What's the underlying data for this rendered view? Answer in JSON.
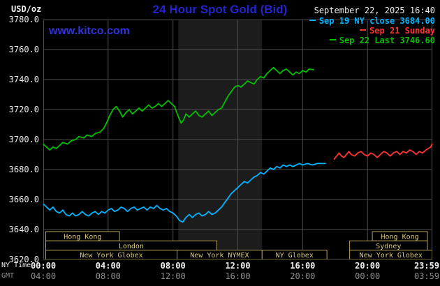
{
  "header": {
    "units_label": "USD/oz",
    "title": "24 Hour Spot Gold (Bid)",
    "datetime": "September 22, 2025 16:40"
  },
  "watermark": {
    "text": "www.kitco.com"
  },
  "colors": {
    "background": "#000000",
    "grid": "#4e4e4e",
    "band": "#1c1c1c",
    "title_blue": "#2323cf",
    "watermark_blue": "#3232dc",
    "axis_text": "#ededed",
    "gmt_text": "#8f8f8f",
    "session_border": "#b3a356",
    "session_text": "#d9c97c",
    "cyan": "#00b4ff",
    "red": "#ff3333",
    "green": "#00c000"
  },
  "legend": {
    "items": [
      {
        "label": "Sep 19 NY close 3684.00",
        "color": "#00b4ff"
      },
      {
        "label": "Sep 21 Sunday",
        "color": "#ff3333"
      },
      {
        "label": "Sep 22 Last 3746.60",
        "color": "#00c000"
      }
    ]
  },
  "axes": {
    "ny_time_label": "NY Time",
    "gmt_label": "GMT",
    "y_tick_labels": [
      "3780.0",
      "3760.0",
      "3740.0",
      "3720.0",
      "3700.0",
      "3680.0",
      "3660.0",
      "3640.0",
      "3620.0"
    ],
    "x_ticks": [
      {
        "hour": 0,
        "ny": "00:00",
        "gmt": "04:00"
      },
      {
        "hour": 4,
        "ny": "04:00",
        "gmt": "08:00"
      },
      {
        "hour": 8,
        "ny": "08:00",
        "gmt": "12:00"
      },
      {
        "hour": 12,
        "ny": "12:00",
        "gmt": "16:00"
      },
      {
        "hour": 16,
        "ny": "16:00",
        "gmt": "20:00"
      },
      {
        "hour": 20,
        "ny": "20:00",
        "gmt": "00:00"
      },
      {
        "hour": 24,
        "ny": "23:59",
        "gmt": "03:59"
      }
    ]
  },
  "sessions": [
    {
      "row": 0,
      "start": 0.15,
      "end": 4.7,
      "label": "Hong Kong"
    },
    {
      "row": 0,
      "start": 20.3,
      "end": 23.7,
      "label": "Hong Kong"
    },
    {
      "row": 1,
      "start": 0.15,
      "end": 10.7,
      "label": "London"
    },
    {
      "row": 1,
      "start": 18.9,
      "end": 23.7,
      "label": "Sydney"
    },
    {
      "row": 2,
      "start": 0.15,
      "end": 8.25,
      "label": "New York Globex"
    },
    {
      "row": 2,
      "start": 8.25,
      "end": 13.5,
      "label": "New York NYMEX"
    },
    {
      "row": 2,
      "start": 13.5,
      "end": 17.5,
      "label": "NY Globex"
    },
    {
      "row": 2,
      "start": 18.9,
      "end": 24.0,
      "label": "New York Globex"
    }
  ],
  "chart_data": {
    "type": "line",
    "title": "24 Hour Spot Gold (Bid)",
    "ylabel": "USD/oz",
    "xlabel": "Time (NY hours)",
    "ylim": [
      3620,
      3780
    ],
    "xlim": [
      0,
      24
    ],
    "y_grid_step": 20,
    "x_grid_step": 4,
    "grid": true,
    "legend_position": "top-right",
    "shaded_band_hours": [
      8.33,
      13.5
    ],
    "series": [
      {
        "id": "sep19-ny-close",
        "name": "Sep 19 NY close 3684.00",
        "color": "#00b4ff",
        "last_value": 3684.0,
        "points": [
          [
            0,
            3657
          ],
          [
            0.2,
            3655
          ],
          [
            0.4,
            3653
          ],
          [
            0.6,
            3655
          ],
          [
            0.8,
            3652
          ],
          [
            1,
            3651
          ],
          [
            1.2,
            3653
          ],
          [
            1.4,
            3650
          ],
          [
            1.6,
            3649
          ],
          [
            1.8,
            3651
          ],
          [
            2,
            3649
          ],
          [
            2.2,
            3650
          ],
          [
            2.4,
            3652
          ],
          [
            2.6,
            3650
          ],
          [
            2.8,
            3649
          ],
          [
            3,
            3651
          ],
          [
            3.2,
            3652
          ],
          [
            3.4,
            3650
          ],
          [
            3.6,
            3652
          ],
          [
            3.8,
            3651
          ],
          [
            4,
            3653
          ],
          [
            4.2,
            3654
          ],
          [
            4.4,
            3652
          ],
          [
            4.6,
            3653
          ],
          [
            4.8,
            3655
          ],
          [
            5,
            3654
          ],
          [
            5.2,
            3652
          ],
          [
            5.4,
            3654
          ],
          [
            5.6,
            3655
          ],
          [
            5.8,
            3653
          ],
          [
            6,
            3654
          ],
          [
            6.2,
            3655
          ],
          [
            6.4,
            3653
          ],
          [
            6.6,
            3655
          ],
          [
            6.8,
            3654
          ],
          [
            7,
            3656
          ],
          [
            7.2,
            3654
          ],
          [
            7.4,
            3653
          ],
          [
            7.6,
            3654
          ],
          [
            7.8,
            3652
          ],
          [
            8,
            3651
          ],
          [
            8.2,
            3649
          ],
          [
            8.4,
            3646
          ],
          [
            8.6,
            3645
          ],
          [
            8.8,
            3648
          ],
          [
            9,
            3650
          ],
          [
            9.2,
            3648
          ],
          [
            9.4,
            3650
          ],
          [
            9.6,
            3651
          ],
          [
            9.8,
            3649
          ],
          [
            10,
            3650
          ],
          [
            10.2,
            3652
          ],
          [
            10.4,
            3650
          ],
          [
            10.6,
            3651
          ],
          [
            10.8,
            3653
          ],
          [
            11,
            3655
          ],
          [
            11.2,
            3658
          ],
          [
            11.4,
            3661
          ],
          [
            11.6,
            3664
          ],
          [
            11.8,
            3666
          ],
          [
            12,
            3668
          ],
          [
            12.2,
            3670
          ],
          [
            12.4,
            3672
          ],
          [
            12.6,
            3671
          ],
          [
            12.8,
            3673
          ],
          [
            13,
            3675
          ],
          [
            13.2,
            3676
          ],
          [
            13.4,
            3678
          ],
          [
            13.6,
            3677
          ],
          [
            13.8,
            3679
          ],
          [
            14,
            3681
          ],
          [
            14.2,
            3680
          ],
          [
            14.4,
            3682
          ],
          [
            14.6,
            3681
          ],
          [
            14.8,
            3683
          ],
          [
            15,
            3682
          ],
          [
            15.2,
            3683
          ],
          [
            15.4,
            3682
          ],
          [
            15.6,
            3683
          ],
          [
            15.8,
            3684
          ],
          [
            16,
            3683
          ],
          [
            16.3,
            3684
          ],
          [
            16.6,
            3683
          ],
          [
            16.9,
            3684
          ],
          [
            17.2,
            3684
          ],
          [
            17.4,
            3684
          ]
        ]
      },
      {
        "id": "sep21-sunday",
        "name": "Sep 21 Sunday",
        "color": "#ff3333",
        "points": [
          [
            17.95,
            3687
          ],
          [
            18.1,
            3689
          ],
          [
            18.25,
            3691
          ],
          [
            18.4,
            3689
          ],
          [
            18.55,
            3688
          ],
          [
            18.7,
            3690
          ],
          [
            18.85,
            3692
          ],
          [
            19,
            3690
          ],
          [
            19.2,
            3689
          ],
          [
            19.4,
            3691
          ],
          [
            19.6,
            3692
          ],
          [
            19.8,
            3690
          ],
          [
            20,
            3689
          ],
          [
            20.2,
            3691
          ],
          [
            20.4,
            3690
          ],
          [
            20.6,
            3688
          ],
          [
            20.8,
            3690
          ],
          [
            21,
            3692
          ],
          [
            21.2,
            3691
          ],
          [
            21.4,
            3689
          ],
          [
            21.6,
            3691
          ],
          [
            21.8,
            3692
          ],
          [
            22,
            3690
          ],
          [
            22.2,
            3692
          ],
          [
            22.4,
            3691
          ],
          [
            22.6,
            3693
          ],
          [
            22.8,
            3692
          ],
          [
            23,
            3690
          ],
          [
            23.2,
            3692
          ],
          [
            23.4,
            3691
          ],
          [
            23.6,
            3693
          ],
          [
            23.75,
            3694
          ],
          [
            23.9,
            3695
          ],
          [
            23.98,
            3697
          ]
        ]
      },
      {
        "id": "sep22-last",
        "name": "Sep 22 Last 3746.60",
        "color": "#00c000",
        "last_value": 3746.6,
        "points": [
          [
            0,
            3697
          ],
          [
            0.2,
            3695
          ],
          [
            0.4,
            3693
          ],
          [
            0.6,
            3695
          ],
          [
            0.8,
            3694
          ],
          [
            1,
            3696
          ],
          [
            1.2,
            3698
          ],
          [
            1.5,
            3697
          ],
          [
            1.7,
            3699
          ],
          [
            2,
            3700
          ],
          [
            2.2,
            3702
          ],
          [
            2.5,
            3701
          ],
          [
            2.7,
            3703
          ],
          [
            3,
            3702
          ],
          [
            3.2,
            3704
          ],
          [
            3.5,
            3705
          ],
          [
            3.7,
            3707
          ],
          [
            3.9,
            3711
          ],
          [
            4.1,
            3716
          ],
          [
            4.3,
            3720
          ],
          [
            4.5,
            3722
          ],
          [
            4.7,
            3719
          ],
          [
            4.9,
            3715
          ],
          [
            5.1,
            3718
          ],
          [
            5.3,
            3720
          ],
          [
            5.5,
            3717
          ],
          [
            5.7,
            3719
          ],
          [
            5.9,
            3721
          ],
          [
            6.1,
            3719
          ],
          [
            6.3,
            3721
          ],
          [
            6.5,
            3723
          ],
          [
            6.7,
            3721
          ],
          [
            6.9,
            3722
          ],
          [
            7.1,
            3724
          ],
          [
            7.3,
            3722
          ],
          [
            7.5,
            3724
          ],
          [
            7.7,
            3726
          ],
          [
            7.9,
            3724
          ],
          [
            8.1,
            3722
          ],
          [
            8.3,
            3716
          ],
          [
            8.5,
            3711
          ],
          [
            8.65,
            3713
          ],
          [
            8.8,
            3717
          ],
          [
            9,
            3715
          ],
          [
            9.2,
            3717
          ],
          [
            9.4,
            3719
          ],
          [
            9.6,
            3716
          ],
          [
            9.8,
            3715
          ],
          [
            10,
            3717
          ],
          [
            10.2,
            3719
          ],
          [
            10.4,
            3716
          ],
          [
            10.6,
            3718
          ],
          [
            10.8,
            3720
          ],
          [
            11,
            3721
          ],
          [
            11.2,
            3725
          ],
          [
            11.4,
            3729
          ],
          [
            11.6,
            3732
          ],
          [
            11.8,
            3735
          ],
          [
            12,
            3736
          ],
          [
            12.2,
            3735
          ],
          [
            12.4,
            3737
          ],
          [
            12.6,
            3739
          ],
          [
            12.8,
            3738
          ],
          [
            13,
            3737
          ],
          [
            13.2,
            3740
          ],
          [
            13.4,
            3742
          ],
          [
            13.6,
            3741
          ],
          [
            13.8,
            3744
          ],
          [
            14,
            3746
          ],
          [
            14.2,
            3748
          ],
          [
            14.4,
            3746
          ],
          [
            14.6,
            3744
          ],
          [
            14.8,
            3746
          ],
          [
            15,
            3747
          ],
          [
            15.2,
            3745
          ],
          [
            15.4,
            3743
          ],
          [
            15.6,
            3745
          ],
          [
            15.8,
            3744
          ],
          [
            16,
            3746
          ],
          [
            16.2,
            3745
          ],
          [
            16.4,
            3747
          ],
          [
            16.67,
            3746.6
          ]
        ]
      }
    ]
  }
}
